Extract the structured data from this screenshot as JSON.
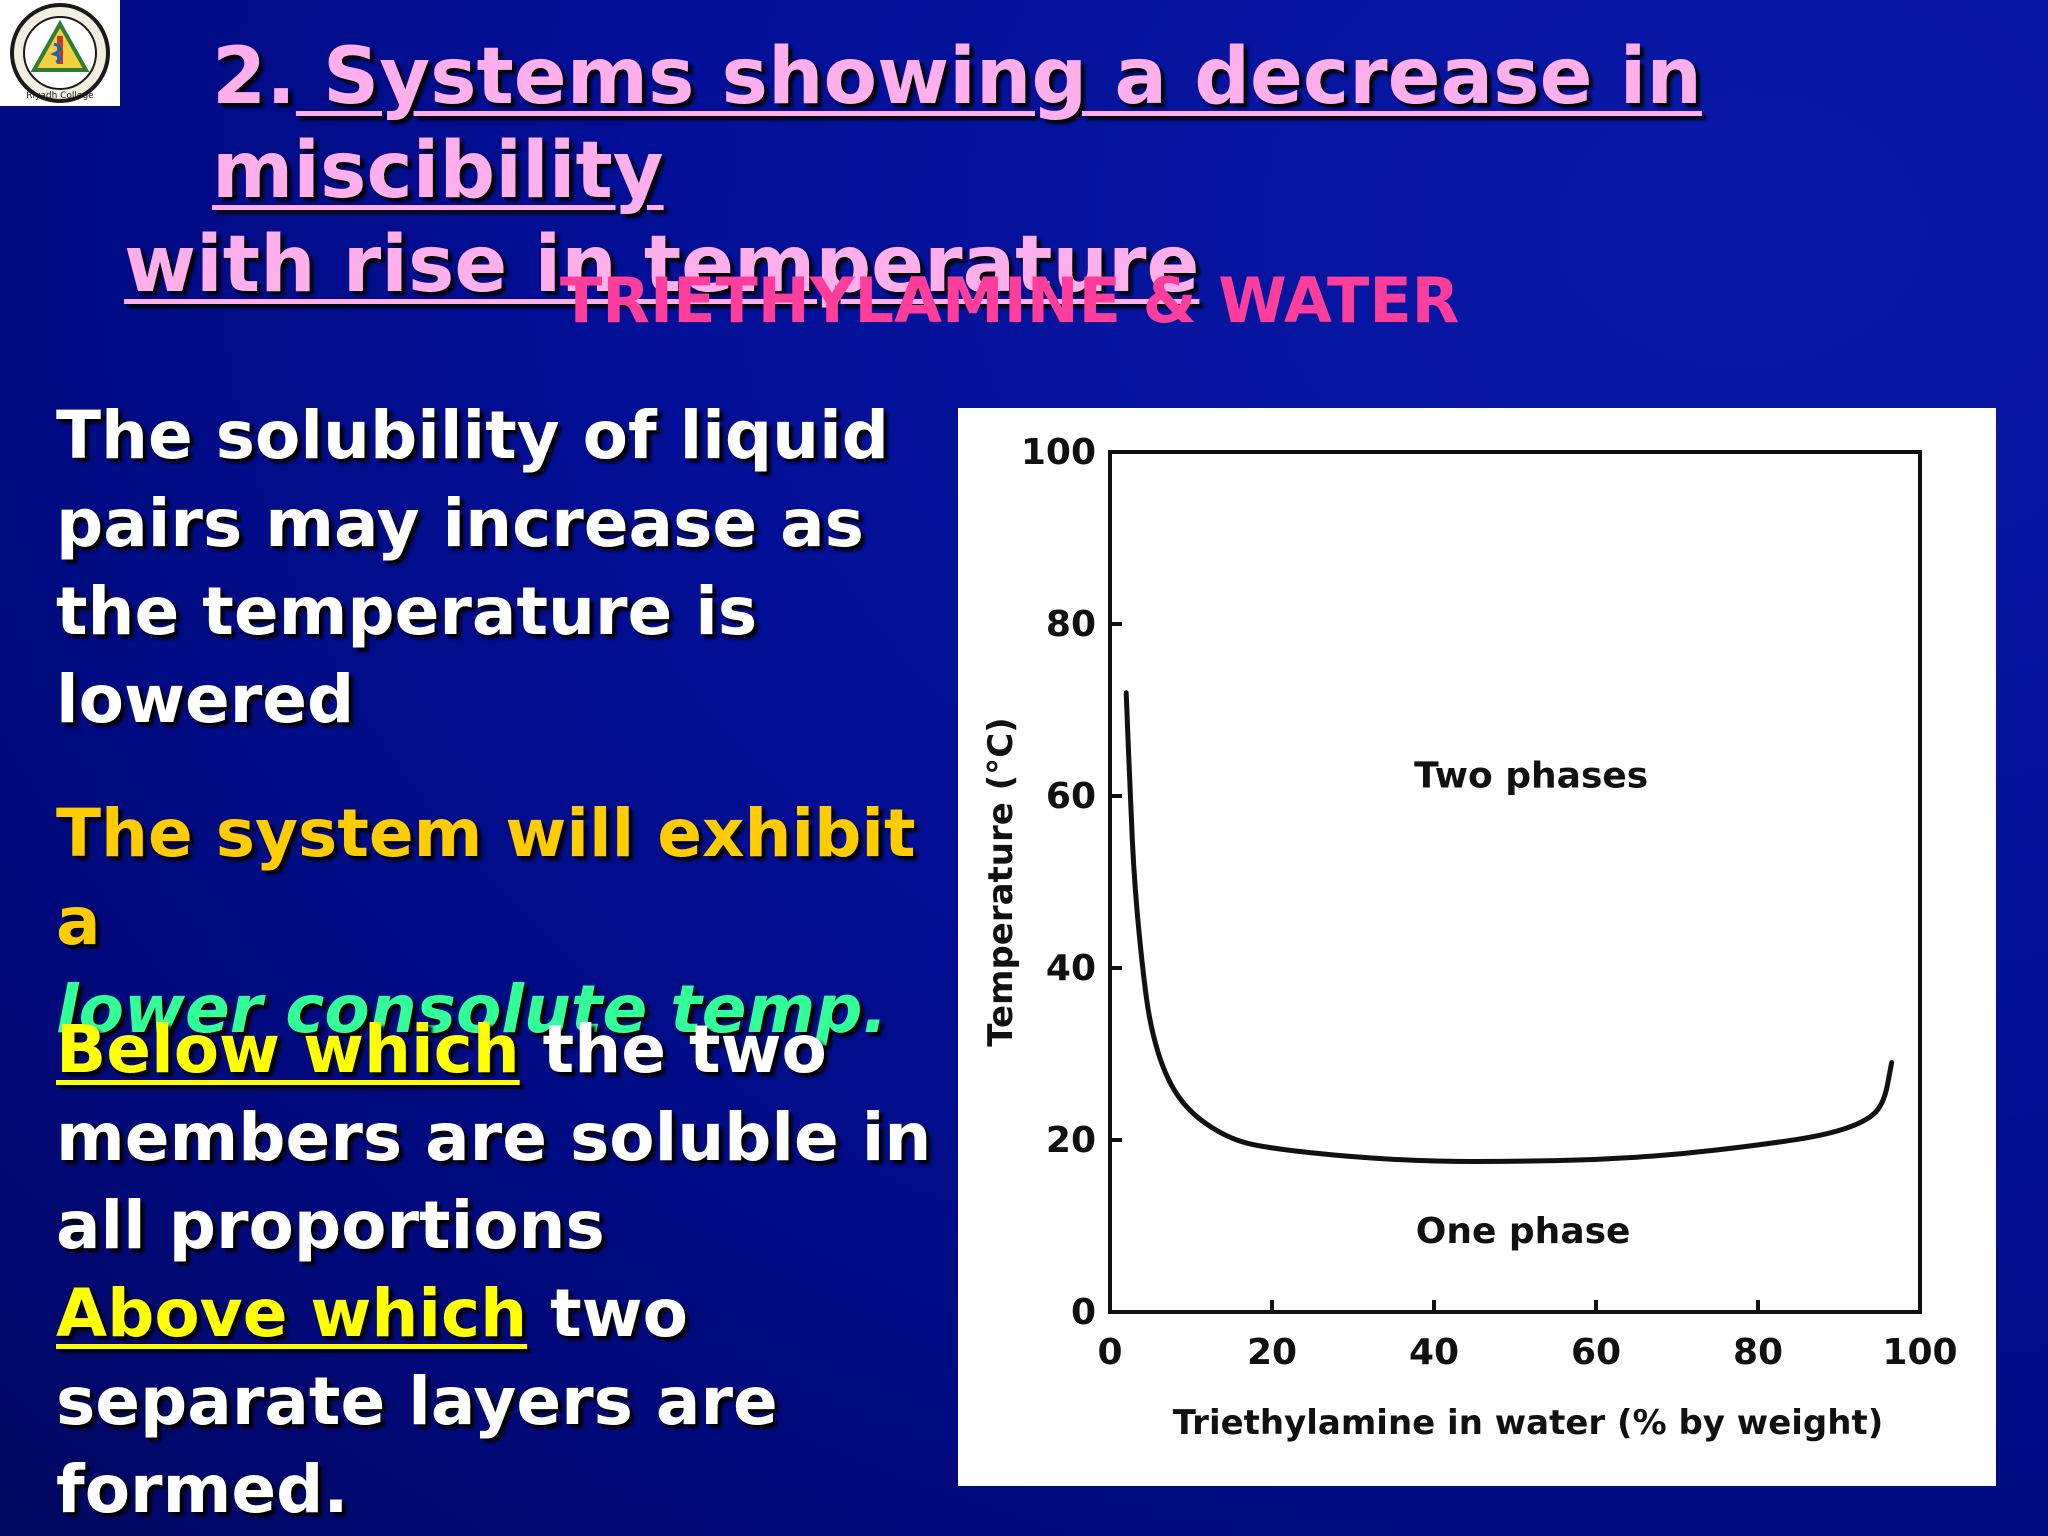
{
  "title": {
    "number": "2.",
    "line1": " Systems showing a decrease in miscibility",
    "line2": "with rise in temperature"
  },
  "subtitle": "TRIETHYLAMINE & WATER",
  "logo": {
    "icon": "college-seal-icon",
    "text": "Riyadh College"
  },
  "paragraphs": {
    "p1": "The solubility of liquid pairs may increase as the temperature is lowered",
    "p2_yellow": "The system will exhibit a",
    "p2_green": "lower consolute temp.",
    "p3_below_label": "Below which",
    "p3_below_rest": " the two members are soluble in all proportions",
    "p3_above_label": "Above which",
    "p3_above_rest": " two separate layers are formed."
  },
  "colors": {
    "background": "#020f96",
    "title": "#ffb0ec",
    "subtitle": "#ff3d9a",
    "body": "#ffffff",
    "highlight_yellow": "#ffcc00",
    "highlight_green": "#33ff99",
    "underline_yellow": "#ffff00"
  },
  "chart_data": {
    "type": "line",
    "title": "",
    "xlabel": "Triethylamine in water (% by weight)",
    "ylabel": "Temperature (°C)",
    "xlim": [
      0,
      100
    ],
    "ylim": [
      0,
      100
    ],
    "x_ticks": [
      "0",
      "20",
      "40",
      "60",
      "80",
      "100"
    ],
    "y_ticks": [
      "0",
      "20",
      "40",
      "60",
      "80",
      "100"
    ],
    "series": [
      {
        "x": [
          2,
          2.5,
          3,
          4,
          5,
          7,
          10,
          15,
          20,
          30,
          40,
          50,
          60,
          70,
          80,
          88,
          93,
          95.5,
          96.5
        ],
        "y": [
          72,
          60,
          50,
          40,
          33,
          27,
          23,
          20,
          19,
          18,
          17.5,
          17.5,
          17.7,
          18.3,
          19.4,
          20.5,
          22,
          24,
          29
        ]
      }
    ],
    "annotations": [
      {
        "text": "Two phases",
        "x": 52,
        "y": 61
      },
      {
        "text": "One phase",
        "x": 51,
        "y": 8
      }
    ],
    "grid": false
  }
}
